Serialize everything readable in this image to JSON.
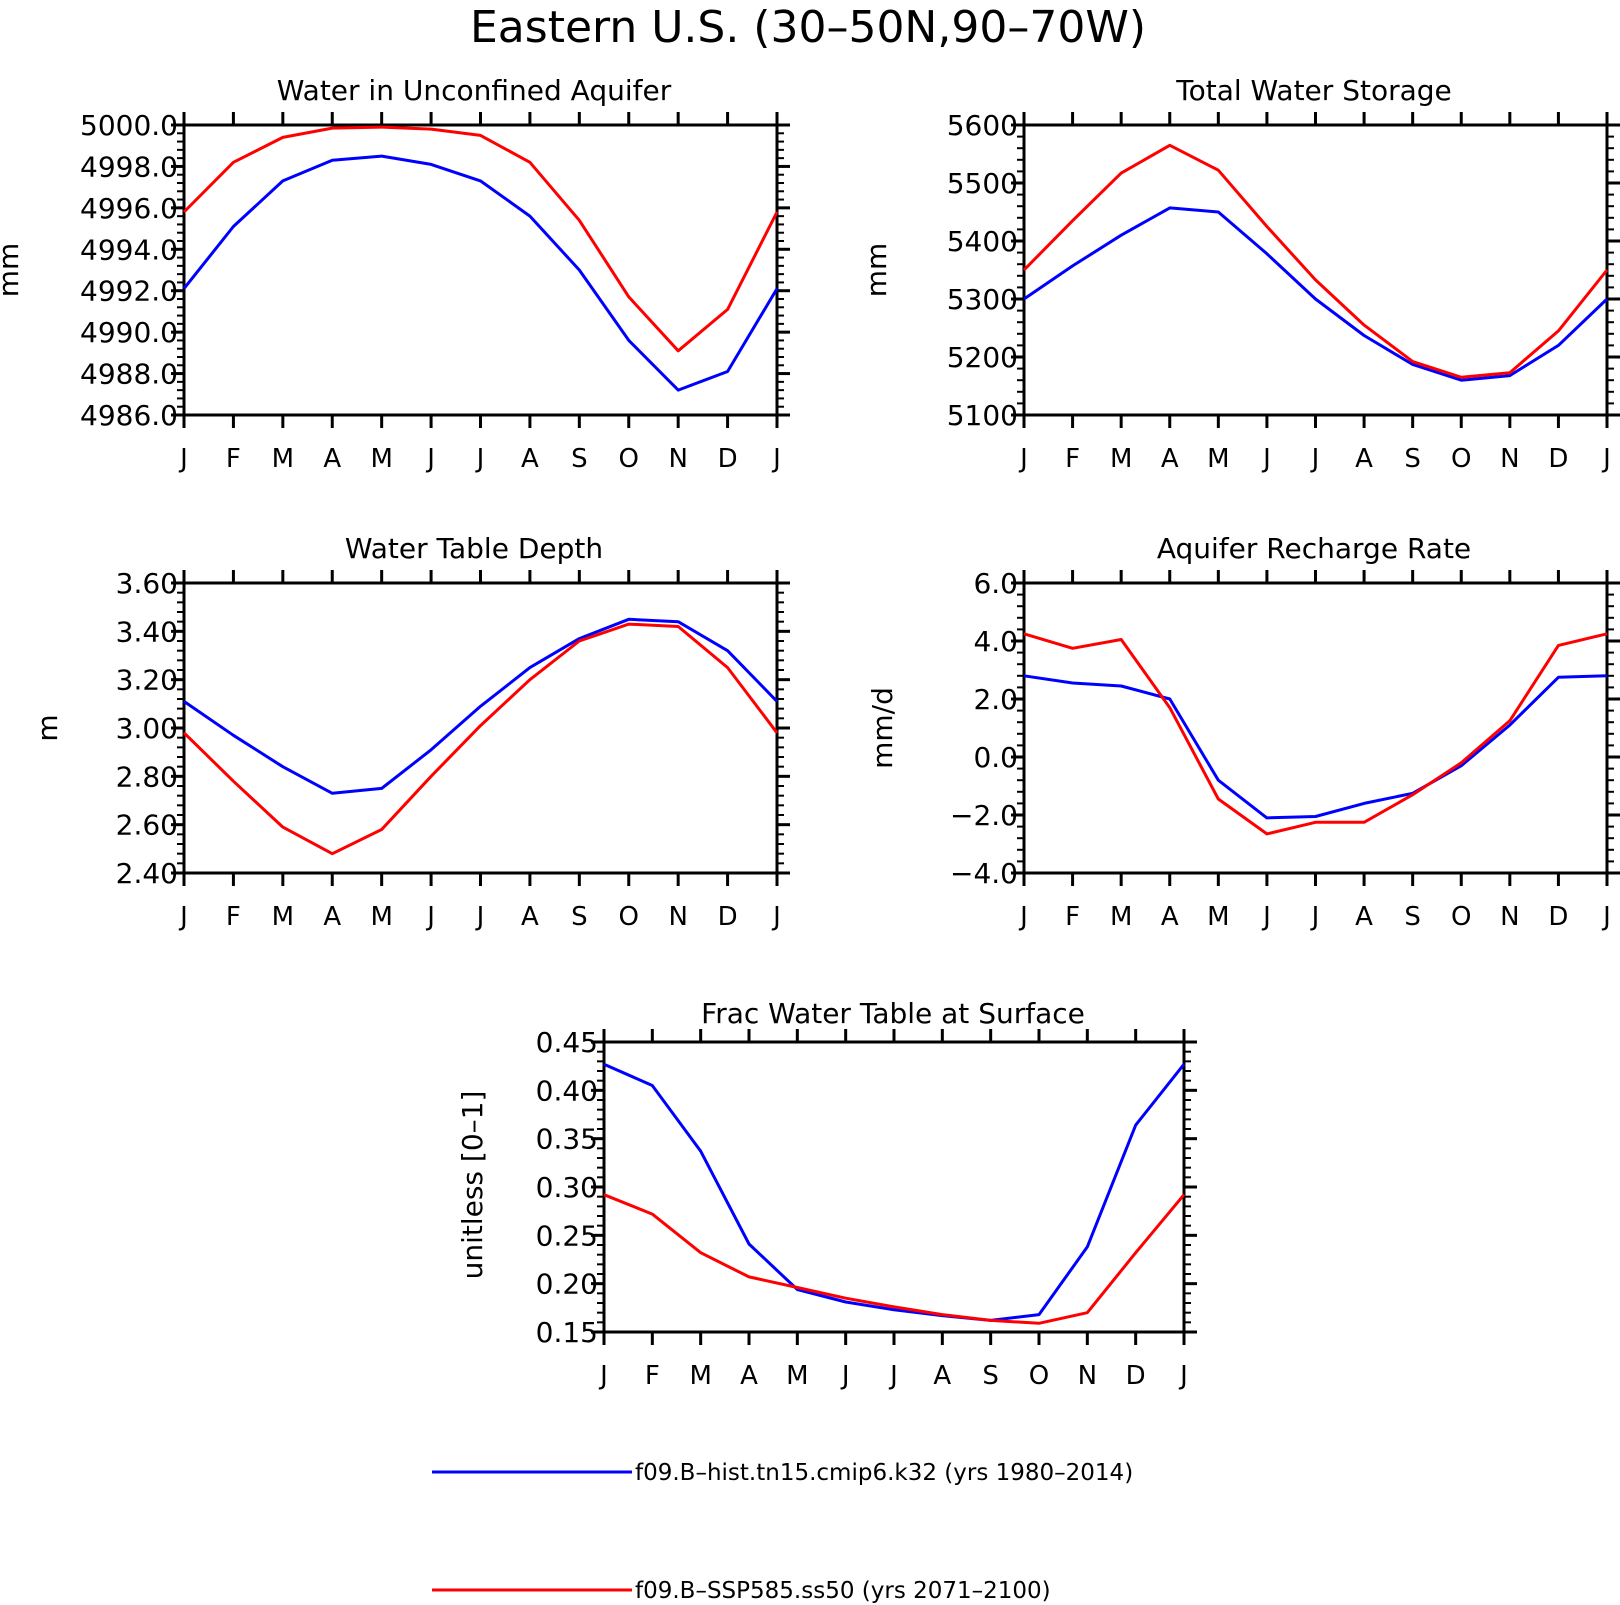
{
  "figure_title": "Eastern U.S. (30–50N,90–70W)",
  "legend": [
    {
      "label": "f09.B–hist.tn15.cmip6.k32 (yrs 1980–2014)",
      "color": "#0000ff"
    },
    {
      "label": "f09.B–SSP585.ss50 (yrs 2071–2100)",
      "color": "#ff0000"
    }
  ],
  "chart_data": [
    {
      "type": "line",
      "title": "Water in Unconfined Aquifer",
      "ylabel": "mm",
      "categories": [
        "J",
        "F",
        "M",
        "A",
        "M",
        "J",
        "J",
        "A",
        "S",
        "O",
        "N",
        "D",
        "J"
      ],
      "ylim": [
        4986,
        5000
      ],
      "yticks": [
        "4986.0",
        "4988.0",
        "4990.0",
        "4992.0",
        "4994.0",
        "4996.0",
        "4998.0",
        "5000.0"
      ],
      "series": [
        {
          "name": "f09.B–hist.tn15.cmip6.k32 (yrs 1980–2014)",
          "color": "#0000ff",
          "values": [
            4992.1,
            4995.1,
            4997.3,
            4998.3,
            4998.5,
            4998.1,
            4997.3,
            4995.6,
            4993.0,
            4989.6,
            4987.2,
            4988.1,
            4992.1
          ]
        },
        {
          "name": "f09.B–SSP585.ss50 (yrs 2071–2100)",
          "color": "#ff0000",
          "values": [
            4995.8,
            4998.2,
            4999.4,
            4999.85,
            4999.9,
            4999.8,
            4999.5,
            4998.2,
            4995.4,
            4991.7,
            4989.1,
            4991.1,
            4995.8
          ]
        }
      ]
    },
    {
      "type": "line",
      "title": "Total Water Storage",
      "ylabel": "mm",
      "categories": [
        "J",
        "F",
        "M",
        "A",
        "M",
        "J",
        "J",
        "A",
        "S",
        "O",
        "N",
        "D",
        "J"
      ],
      "ylim": [
        5100,
        5600
      ],
      "yticks": [
        "5100",
        "5200",
        "5300",
        "5400",
        "5500",
        "5600"
      ],
      "series": [
        {
          "name": "f09.B–hist.tn15.cmip6.k32 (yrs 1980–2014)",
          "color": "#0000ff",
          "values": [
            5300,
            5357,
            5410,
            5457,
            5450,
            5378,
            5300,
            5237,
            5187,
            5160,
            5168,
            5220,
            5300
          ]
        },
        {
          "name": "f09.B–SSP585.ss50 (yrs 2071–2100)",
          "color": "#ff0000",
          "values": [
            5350,
            5435,
            5517,
            5565,
            5522,
            5425,
            5333,
            5255,
            5192,
            5165,
            5173,
            5245,
            5350
          ]
        }
      ]
    },
    {
      "type": "line",
      "title": "Water Table Depth",
      "ylabel": "m",
      "categories": [
        "J",
        "F",
        "M",
        "A",
        "M",
        "J",
        "J",
        "A",
        "S",
        "O",
        "N",
        "D",
        "J"
      ],
      "ylim": [
        2.4,
        3.6
      ],
      "yticks": [
        "2.40",
        "2.60",
        "2.80",
        "3.00",
        "3.20",
        "3.40",
        "3.60"
      ],
      "series": [
        {
          "name": "f09.B–hist.tn15.cmip6.k32 (yrs 1980–2014)",
          "color": "#0000ff",
          "values": [
            3.11,
            2.97,
            2.84,
            2.73,
            2.75,
            2.91,
            3.09,
            3.25,
            3.37,
            3.45,
            3.44,
            3.32,
            3.11
          ]
        },
        {
          "name": "f09.B–SSP585.ss50 (yrs 2071–2100)",
          "color": "#ff0000",
          "values": [
            2.98,
            2.78,
            2.59,
            2.48,
            2.58,
            2.8,
            3.01,
            3.2,
            3.36,
            3.43,
            3.42,
            3.25,
            2.98
          ]
        }
      ]
    },
    {
      "type": "line",
      "title": "Aquifer Recharge Rate",
      "ylabel": "mm/d",
      "categories": [
        "J",
        "F",
        "M",
        "A",
        "M",
        "J",
        "J",
        "A",
        "S",
        "O",
        "N",
        "D",
        "J"
      ],
      "ylim": [
        -4,
        6
      ],
      "yticks": [
        "−4.0",
        "−2.0",
        "0.0",
        "2.0",
        "4.0",
        "6.0"
      ],
      "series": [
        {
          "name": "f09.B–hist.tn15.cmip6.k32 (yrs 1980–2014)",
          "color": "#0000ff",
          "values": [
            2.8,
            2.55,
            2.45,
            2.0,
            -0.8,
            -2.1,
            -2.05,
            -1.6,
            -1.25,
            -0.3,
            1.1,
            2.75,
            2.8
          ]
        },
        {
          "name": "f09.B–SSP585.ss50 (yrs 2071–2100)",
          "color": "#ff0000",
          "values": [
            4.25,
            3.75,
            4.05,
            1.7,
            -1.45,
            -2.65,
            -2.25,
            -2.25,
            -1.3,
            -0.2,
            1.25,
            3.85,
            4.25
          ]
        }
      ]
    },
    {
      "type": "line",
      "title": "Frac Water Table at Surface",
      "ylabel": "unitless [0–1]",
      "categories": [
        "J",
        "F",
        "M",
        "A",
        "M",
        "J",
        "J",
        "A",
        "S",
        "O",
        "N",
        "D",
        "J"
      ],
      "ylim": [
        0.15,
        0.45
      ],
      "yticks": [
        "0.15",
        "0.20",
        "0.25",
        "0.30",
        "0.35",
        "0.40",
        "0.45"
      ],
      "series": [
        {
          "name": "f09.B–hist.tn15.cmip6.k32 (yrs 1980–2014)",
          "color": "#0000ff",
          "values": [
            0.427,
            0.405,
            0.337,
            0.241,
            0.194,
            0.181,
            0.173,
            0.167,
            0.162,
            0.168,
            0.238,
            0.364,
            0.427
          ]
        },
        {
          "name": "f09.B–SSP585.ss50 (yrs 2071–2100)",
          "color": "#ff0000",
          "values": [
            0.292,
            0.272,
            0.232,
            0.207,
            0.196,
            0.185,
            0.176,
            0.168,
            0.162,
            0.159,
            0.17,
            0.232,
            0.292
          ]
        }
      ]
    }
  ]
}
